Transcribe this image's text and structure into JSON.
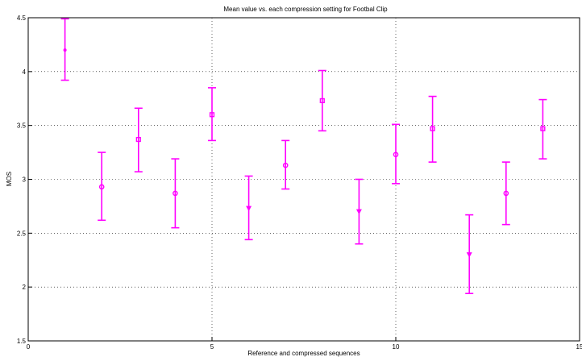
{
  "chart_data": {
    "type": "scatter",
    "title": "Mean value vs. each compression setting for Footbal Clip",
    "xlabel": "Reference and compressed sequences",
    "ylabel": "MOS",
    "xlim": [
      0,
      15
    ],
    "ylim": [
      1.5,
      4.5
    ],
    "xticks": [
      0,
      5,
      10,
      15
    ],
    "yticks": [
      1.5,
      2,
      2.5,
      3,
      3.5,
      4,
      4.5
    ],
    "xtick_labels": [
      "0",
      "5",
      "10",
      "15"
    ],
    "ytick_labels": [
      "1.5",
      "2",
      "2.5",
      "3",
      "3.5",
      "4",
      "4.5"
    ],
    "grid": true,
    "color": "#ff00ff",
    "points": [
      {
        "x": 1,
        "y": 4.2,
        "lower": 3.92,
        "upper": 4.49,
        "marker": "dot"
      },
      {
        "x": 2,
        "y": 2.93,
        "lower": 2.62,
        "upper": 3.25,
        "marker": "circle"
      },
      {
        "x": 3,
        "y": 3.37,
        "lower": 3.07,
        "upper": 3.66,
        "marker": "square"
      },
      {
        "x": 4,
        "y": 2.87,
        "lower": 2.55,
        "upper": 3.19,
        "marker": "circle"
      },
      {
        "x": 5,
        "y": 3.6,
        "lower": 3.36,
        "upper": 3.85,
        "marker": "square"
      },
      {
        "x": 6,
        "y": 2.73,
        "lower": 2.44,
        "upper": 3.03,
        "marker": "triangle"
      },
      {
        "x": 7,
        "y": 3.13,
        "lower": 2.91,
        "upper": 3.36,
        "marker": "circle"
      },
      {
        "x": 8,
        "y": 3.73,
        "lower": 3.45,
        "upper": 4.01,
        "marker": "square"
      },
      {
        "x": 9,
        "y": 2.7,
        "lower": 2.4,
        "upper": 3.0,
        "marker": "triangle"
      },
      {
        "x": 10,
        "y": 3.23,
        "lower": 2.96,
        "upper": 3.51,
        "marker": "circle"
      },
      {
        "x": 11,
        "y": 3.47,
        "lower": 3.16,
        "upper": 3.77,
        "marker": "square"
      },
      {
        "x": 12,
        "y": 2.3,
        "lower": 1.94,
        "upper": 2.67,
        "marker": "triangle"
      },
      {
        "x": 13,
        "y": 2.87,
        "lower": 2.58,
        "upper": 3.16,
        "marker": "circle"
      },
      {
        "x": 14,
        "y": 3.47,
        "lower": 3.19,
        "upper": 3.74,
        "marker": "square"
      }
    ]
  }
}
